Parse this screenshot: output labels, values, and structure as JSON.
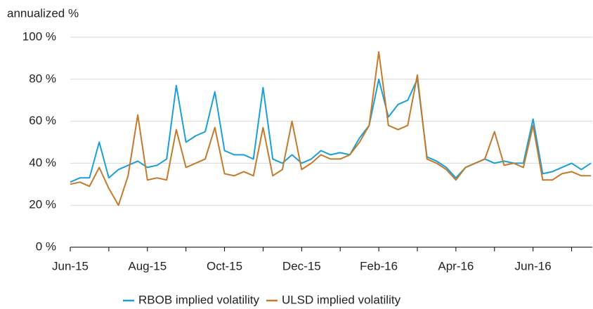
{
  "chart_data": {
    "type": "line",
    "ylabel": "annualized %",
    "categories": [
      "Jun-15",
      null,
      null,
      null,
      null,
      null,
      null,
      null,
      "Aug-15",
      null,
      null,
      null,
      null,
      null,
      null,
      null,
      "Oct-15",
      null,
      null,
      null,
      null,
      null,
      null,
      null,
      "Dec-15",
      null,
      null,
      null,
      null,
      null,
      null,
      null,
      "Feb-16",
      null,
      null,
      null,
      null,
      null,
      null,
      null,
      "Apr-16",
      null,
      null,
      null,
      null,
      null,
      null,
      null,
      "Jun-16",
      null,
      null,
      null,
      null,
      null,
      null
    ],
    "series": [
      {
        "name": "RBOB implied volatility",
        "color": "#1a9fd9",
        "values": [
          31,
          33,
          33,
          50,
          33,
          37,
          39,
          41,
          38,
          39,
          42,
          77,
          50,
          53,
          55,
          74,
          46,
          44,
          44,
          42,
          76,
          42,
          40,
          44,
          40,
          42,
          46,
          44,
          45,
          44,
          52,
          58,
          80,
          62,
          68,
          70,
          80,
          43,
          41,
          38,
          33,
          38,
          40,
          42,
          40,
          41,
          40,
          40,
          61,
          35,
          36,
          38,
          40,
          37,
          40
        ]
      },
      {
        "name": "ULSD implied volatility",
        "color": "#c47a2c",
        "values": [
          30,
          31,
          29,
          38,
          28,
          20,
          34,
          63,
          32,
          33,
          32,
          56,
          38,
          40,
          42,
          57,
          35,
          34,
          36,
          34,
          57,
          34,
          37,
          60,
          37,
          40,
          44,
          42,
          42,
          44,
          50,
          58,
          93,
          58,
          56,
          58,
          82,
          42,
          40,
          37,
          32,
          38,
          40,
          42,
          55,
          39,
          40,
          38,
          58,
          32,
          32,
          35,
          36,
          34,
          34
        ]
      }
    ],
    "ylim": [
      0,
      100
    ],
    "yticks": [
      {
        "value": 0,
        "label": "0 %"
      },
      {
        "value": 20,
        "label": "20 %"
      },
      {
        "value": 40,
        "label": "40 %"
      },
      {
        "value": 60,
        "label": "60 %"
      },
      {
        "value": 80,
        "label": "80 %"
      },
      {
        "value": 100,
        "label": "100 %"
      }
    ],
    "grid": true,
    "legend": "bottom"
  }
}
